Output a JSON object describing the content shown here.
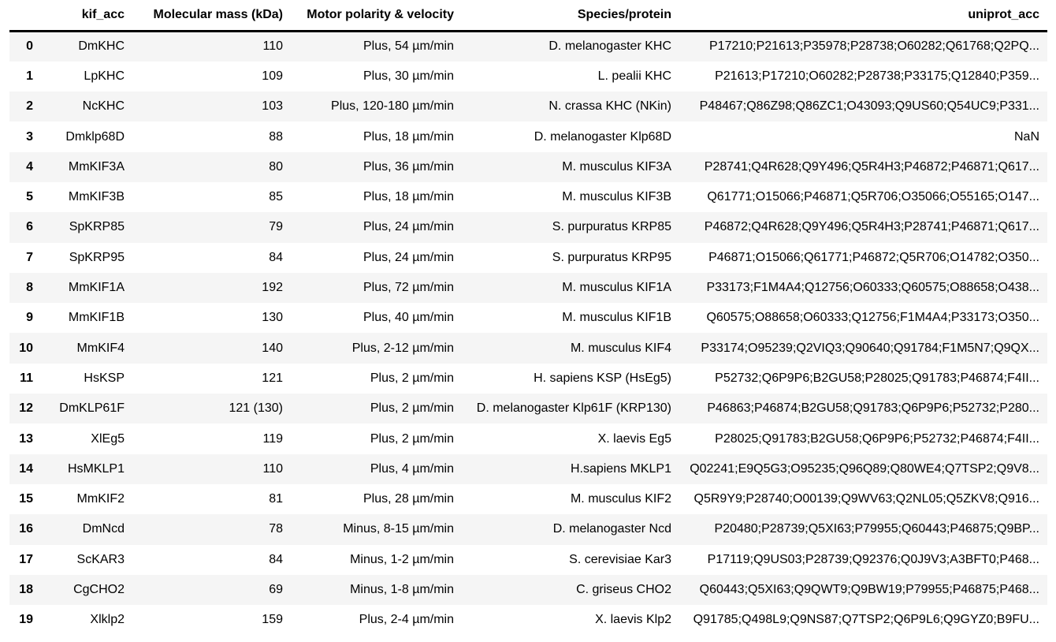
{
  "table": {
    "columns": [
      "kif_acc",
      "Molecular mass (kDa)",
      "Motor polarity & velocity",
      "Species/protein",
      "uniprot_acc"
    ],
    "rows": [
      {
        "index": "0",
        "kif_acc": "DmKHC",
        "mass": "110",
        "motor": "Plus, 54 µm/min",
        "species": "D. melanogaster KHC",
        "uniprot": "P17210;P21613;P35978;P28738;O60282;Q61768;Q2PQ..."
      },
      {
        "index": "1",
        "kif_acc": "LpKHC",
        "mass": "109",
        "motor": "Plus, 30 µm/min",
        "species": "L. pealii KHC",
        "uniprot": "P21613;P17210;O60282;P28738;P33175;Q12840;P359..."
      },
      {
        "index": "2",
        "kif_acc": "NcKHC",
        "mass": "103",
        "motor": "Plus, 120-180 µm/min",
        "species": "N. crassa KHC (NKin)",
        "uniprot": "P48467;Q86Z98;Q86ZC1;O43093;Q9US60;Q54UC9;P331..."
      },
      {
        "index": "3",
        "kif_acc": "Dmklp68D",
        "mass": "88",
        "motor": "Plus, 18 µm/min",
        "species": "D. melanogaster Klp68D",
        "uniprot": "NaN"
      },
      {
        "index": "4",
        "kif_acc": "MmKIF3A",
        "mass": "80",
        "motor": "Plus, 36 µm/min",
        "species": "M. musculus KIF3A",
        "uniprot": "P28741;Q4R628;Q9Y496;Q5R4H3;P46872;P46871;Q617..."
      },
      {
        "index": "5",
        "kif_acc": "MmKIF3B",
        "mass": "85",
        "motor": "Plus, 18 µm/min",
        "species": "M. musculus KIF3B",
        "uniprot": "Q61771;O15066;P46871;Q5R706;O35066;O55165;O147..."
      },
      {
        "index": "6",
        "kif_acc": "SpKRP85",
        "mass": "79",
        "motor": "Plus, 24 µm/min",
        "species": "S. purpuratus KRP85",
        "uniprot": "P46872;Q4R628;Q9Y496;Q5R4H3;P28741;P46871;Q617..."
      },
      {
        "index": "7",
        "kif_acc": "SpKRP95",
        "mass": "84",
        "motor": "Plus, 24 µm/min",
        "species": "S. purpuratus KRP95",
        "uniprot": "P46871;O15066;Q61771;P46872;Q5R706;O14782;O350..."
      },
      {
        "index": "8",
        "kif_acc": "MmKIF1A",
        "mass": "192",
        "motor": "Plus, 72 µm/min",
        "species": "M. musculus KIF1A",
        "uniprot": "P33173;F1M4A4;Q12756;O60333;Q60575;O88658;O438..."
      },
      {
        "index": "9",
        "kif_acc": "MmKIF1B",
        "mass": "130",
        "motor": "Plus, 40 µm/min",
        "species": "M. musculus KIF1B",
        "uniprot": "Q60575;O88658;O60333;Q12756;F1M4A4;P33173;O350..."
      },
      {
        "index": "10",
        "kif_acc": "MmKIF4",
        "mass": "140",
        "motor": "Plus, 2-12 µm/min",
        "species": "M. musculus KIF4",
        "uniprot": "P33174;O95239;Q2VIQ3;Q90640;Q91784;F1M5N7;Q9QX..."
      },
      {
        "index": "11",
        "kif_acc": "HsKSP",
        "mass": "121",
        "motor": "Plus, 2 µm/min",
        "species": "H. sapiens KSP (HsEg5)",
        "uniprot": "P52732;Q6P9P6;B2GU58;P28025;Q91783;P46874;F4II..."
      },
      {
        "index": "12",
        "kif_acc": "DmKLP61F",
        "mass": "121 (130)",
        "motor": "Plus, 2 µm/min",
        "species": "D. melanogaster Klp61F (KRP130)",
        "uniprot": "P46863;P46874;B2GU58;Q91783;Q6P9P6;P52732;P280..."
      },
      {
        "index": "13",
        "kif_acc": "XlEg5",
        "mass": "119",
        "motor": "Plus, 2 µm/min",
        "species": "X. laevis Eg5",
        "uniprot": "P28025;Q91783;B2GU58;Q6P9P6;P52732;P46874;F4II..."
      },
      {
        "index": "14",
        "kif_acc": "HsMKLP1",
        "mass": "110",
        "motor": "Plus, 4 µm/min",
        "species": "H.sapiens MKLP1",
        "uniprot": "Q02241;E9Q5G3;O95235;Q96Q89;Q80WE4;Q7TSP2;Q9V8..."
      },
      {
        "index": "15",
        "kif_acc": "MmKIF2",
        "mass": "81",
        "motor": "Plus, 28 µm/min",
        "species": "M. musculus KIF2",
        "uniprot": "Q5R9Y9;P28740;O00139;Q9WV63;Q2NL05;Q5ZKV8;Q916..."
      },
      {
        "index": "16",
        "kif_acc": "DmNcd",
        "mass": "78",
        "motor": "Minus, 8-15 µm/min",
        "species": "D. melanogaster Ncd",
        "uniprot": "P20480;P28739;Q5XI63;P79955;Q60443;P46875;Q9BP..."
      },
      {
        "index": "17",
        "kif_acc": "ScKAR3",
        "mass": "84",
        "motor": "Minus, 1-2 µm/min",
        "species": "S. cerevisiae Kar3",
        "uniprot": "P17119;Q9US03;P28739;Q92376;Q0J9V3;A3BFT0;P468..."
      },
      {
        "index": "18",
        "kif_acc": "CgCHO2",
        "mass": "69",
        "motor": "Minus, 1-8 µm/min",
        "species": "C. griseus CHO2",
        "uniprot": "Q60443;Q5XI63;Q9QWT9;Q9BW19;P79955;P46875;P468..."
      },
      {
        "index": "19",
        "kif_acc": "Xlklp2",
        "mass": "159",
        "motor": "Plus, 2-4 µm/min",
        "species": "X. laevis Klp2",
        "uniprot": "Q91785;Q498L9;Q9NS87;Q7TSP2;Q6P9L6;Q9GYZ0;B9FU..."
      }
    ]
  }
}
